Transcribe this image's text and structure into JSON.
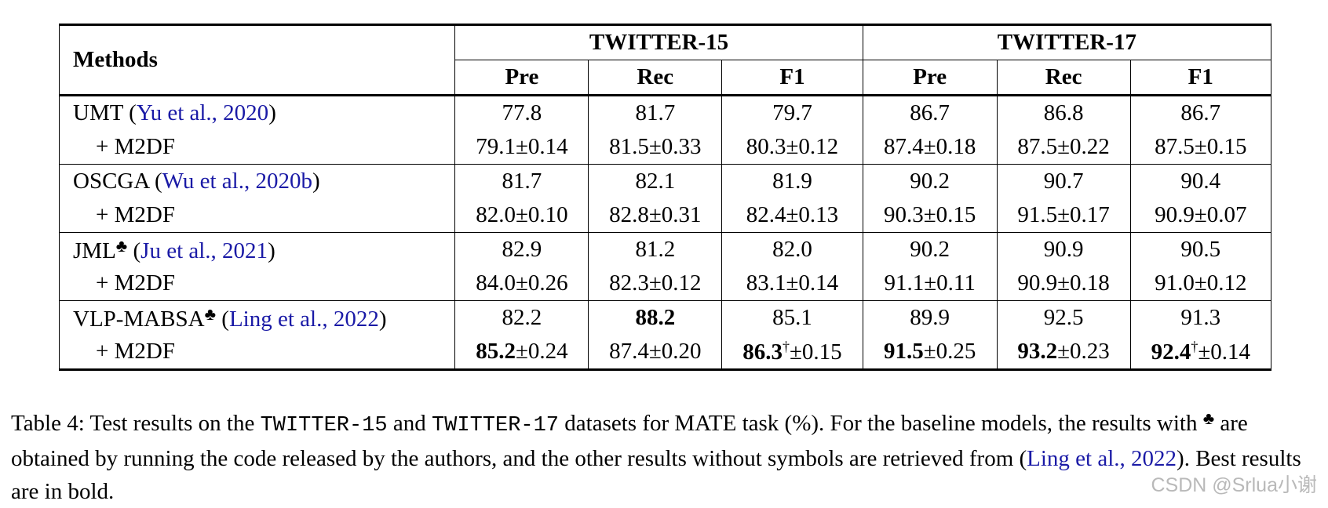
{
  "table": {
    "method_header": "Methods",
    "groups": [
      "TWITTER-15",
      "TWITTER-17"
    ],
    "metrics": [
      "Pre",
      "Rec",
      "F1",
      "Pre",
      "Rec",
      "F1"
    ],
    "blocks": [
      {
        "name": "UMT",
        "symbol": "",
        "cite": "Yu et al., 2020",
        "base": [
          "77.8",
          "81.7",
          "79.7",
          "86.7",
          "86.8",
          "86.7"
        ],
        "sub_name": "+ M2DF",
        "sub": [
          {
            "v": "79.1",
            "s": "±0.14",
            "bold": false,
            "dag": false
          },
          {
            "v": "81.5",
            "s": "±0.33",
            "bold": false,
            "dag": false
          },
          {
            "v": "80.3",
            "s": "±0.12",
            "bold": false,
            "dag": false
          },
          {
            "v": "87.4",
            "s": "±0.18",
            "bold": false,
            "dag": false
          },
          {
            "v": "87.5",
            "s": "±0.22",
            "bold": false,
            "dag": false
          },
          {
            "v": "87.5",
            "s": "±0.15",
            "bold": false,
            "dag": false
          }
        ]
      },
      {
        "name": "OSCGA",
        "symbol": "",
        "cite": "Wu et al., 2020b",
        "base": [
          "81.7",
          "82.1",
          "81.9",
          "90.2",
          "90.7",
          "90.4"
        ],
        "sub_name": "+ M2DF",
        "sub": [
          {
            "v": "82.0",
            "s": "±0.10",
            "bold": false,
            "dag": false
          },
          {
            "v": "82.8",
            "s": "±0.31",
            "bold": false,
            "dag": false
          },
          {
            "v": "82.4",
            "s": "±0.13",
            "bold": false,
            "dag": false
          },
          {
            "v": "90.3",
            "s": "±0.15",
            "bold": false,
            "dag": false
          },
          {
            "v": "91.5",
            "s": "±0.17",
            "bold": false,
            "dag": false
          },
          {
            "v": "90.9",
            "s": "±0.07",
            "bold": false,
            "dag": false
          }
        ]
      },
      {
        "name": "JML",
        "symbol": "♣",
        "cite": "Ju et al., 2021",
        "base": [
          "82.9",
          "81.2",
          "82.0",
          "90.2",
          "90.9",
          "90.5"
        ],
        "sub_name": "+ M2DF",
        "sub": [
          {
            "v": "84.0",
            "s": "±0.26",
            "bold": false,
            "dag": false
          },
          {
            "v": "82.3",
            "s": "±0.12",
            "bold": false,
            "dag": false
          },
          {
            "v": "83.1",
            "s": "±0.14",
            "bold": false,
            "dag": false
          },
          {
            "v": "91.1",
            "s": "±0.11",
            "bold": false,
            "dag": false
          },
          {
            "v": "90.9",
            "s": "±0.18",
            "bold": false,
            "dag": false
          },
          {
            "v": "91.0",
            "s": "±0.12",
            "bold": false,
            "dag": false
          }
        ]
      },
      {
        "name": "VLP-MABSA",
        "symbol": "♣",
        "cite": "Ling et al., 2022",
        "base": [
          "82.2",
          "88.2",
          "85.1",
          "89.9",
          "92.5",
          "91.3"
        ],
        "base_bold": [
          false,
          true,
          false,
          false,
          false,
          false
        ],
        "sub_name": "+ M2DF",
        "sub": [
          {
            "v": "85.2",
            "s": "±0.24",
            "bold": true,
            "dag": false
          },
          {
            "v": "87.4",
            "s": "±0.20",
            "bold": false,
            "dag": false
          },
          {
            "v": "86.3",
            "s": "±0.15",
            "bold": true,
            "dag": true
          },
          {
            "v": "91.5",
            "s": "±0.25",
            "bold": true,
            "dag": false
          },
          {
            "v": "93.2",
            "s": "±0.23",
            "bold": true,
            "dag": false
          },
          {
            "v": "92.4",
            "s": "±0.14",
            "bold": true,
            "dag": true
          }
        ]
      }
    ]
  },
  "caption": {
    "p1": "Table 4: Test results on the ",
    "ds1": "TWITTER-15",
    "p2": " and ",
    "ds2": "TWITTER-17",
    "p3": " datasets for MATE task (%). For the baseline models, the results with ",
    "sym": "♣",
    "p4": " are obtained by running the code released by the authors, and the other results without symbols are retrieved from (",
    "cite": "Ling et al., 2022",
    "p5": "). Best results are in bold."
  },
  "watermark": "CSDN @Srlua小谢"
}
